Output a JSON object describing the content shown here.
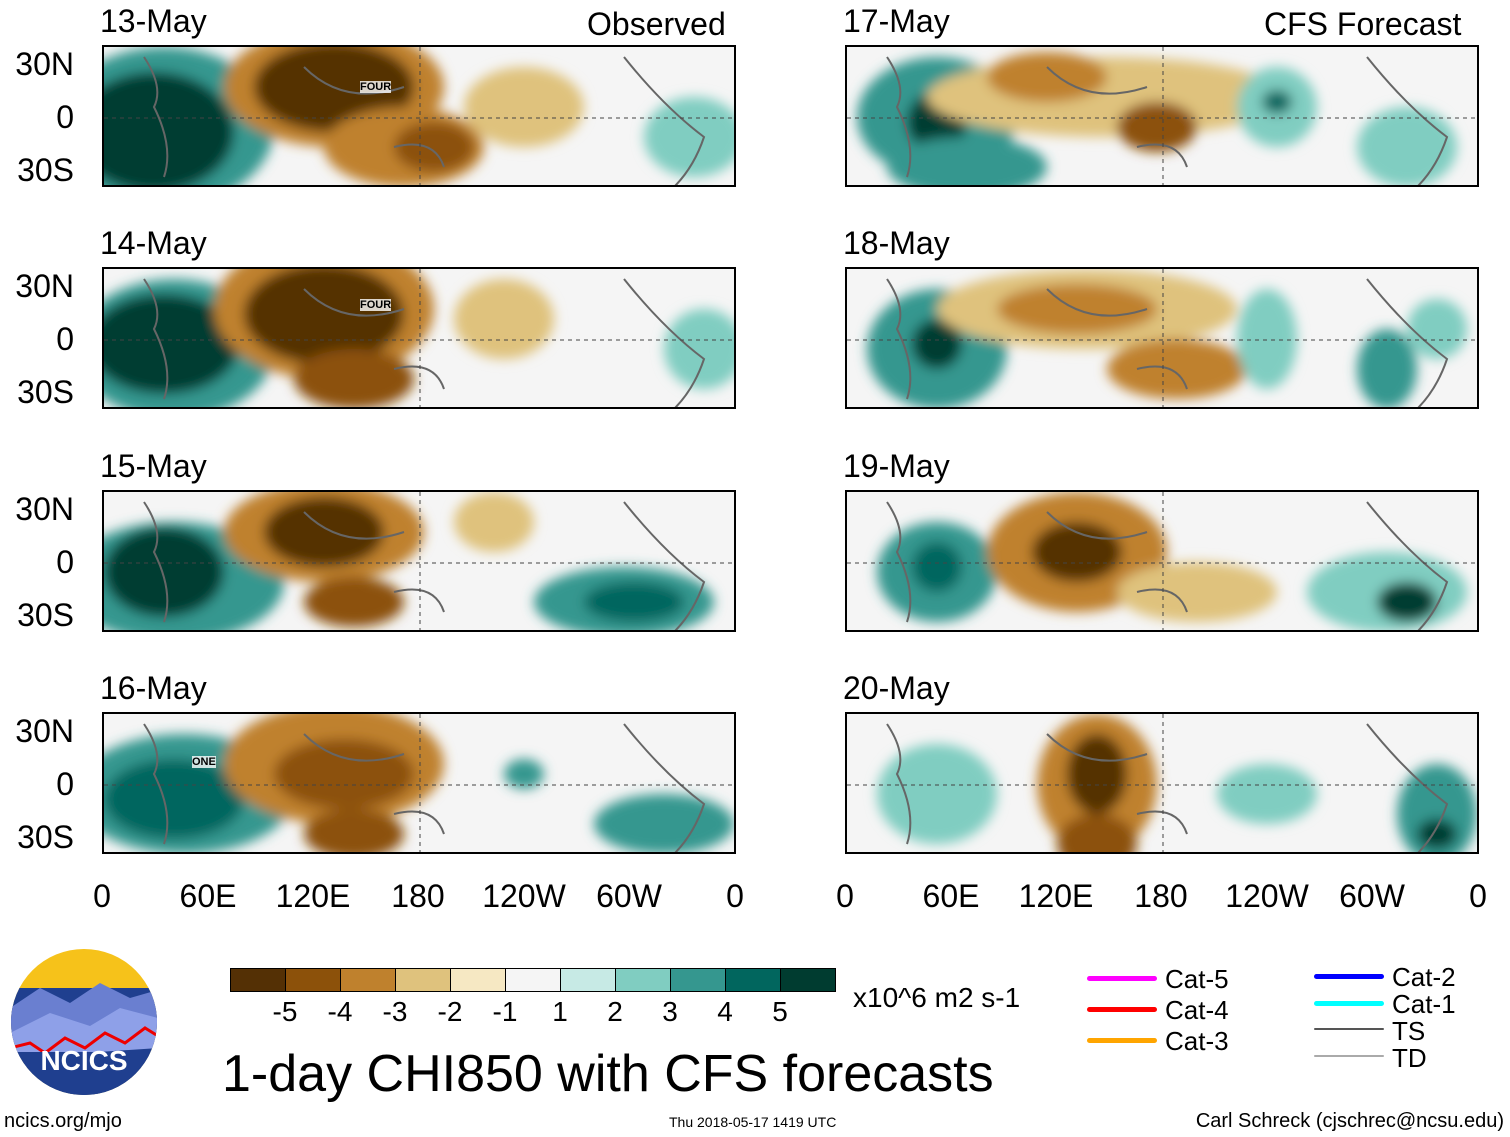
{
  "figure_title": "1-day CHI850 with CFS forecasts",
  "observed_label": "Observed",
  "forecast_label": "CFS Forecast",
  "panels": [
    {
      "date": "13-May",
      "type": "observed",
      "storm_label": "FOUR"
    },
    {
      "date": "14-May",
      "type": "observed",
      "storm_label": "FOUR"
    },
    {
      "date": "15-May",
      "type": "observed"
    },
    {
      "date": "16-May",
      "type": "observed",
      "storm_label": "ONE"
    },
    {
      "date": "17-May",
      "type": "forecast"
    },
    {
      "date": "18-May",
      "type": "forecast"
    },
    {
      "date": "19-May",
      "type": "forecast"
    },
    {
      "date": "20-May",
      "type": "forecast"
    }
  ],
  "lat_labels": [
    "30N",
    "0",
    "30S"
  ],
  "lon_labels": [
    "0",
    "60E",
    "120E",
    "180",
    "120W",
    "60W",
    "0"
  ],
  "colorbar": {
    "labels": [
      "-5",
      "-4",
      "-3",
      "-2",
      "-1",
      "1",
      "2",
      "3",
      "4",
      "5"
    ],
    "colors": [
      "#543005",
      "#8c510a",
      "#bf812d",
      "#dfc27d",
      "#f6e8c3",
      "#f5f5f5",
      "#c7eae5",
      "#80cdc1",
      "#35978f",
      "#01665e",
      "#003c30"
    ],
    "units": "x10^6 m2 s-1"
  },
  "storm_legend": [
    {
      "label": "Cat-5",
      "color": "#ff00ff"
    },
    {
      "label": "Cat-4",
      "color": "#ff0000"
    },
    {
      "label": "Cat-3",
      "color": "#ffa500"
    },
    {
      "label": "Cat-2",
      "color": "#0000ff"
    },
    {
      "label": "Cat-1",
      "color": "#00ffff"
    },
    {
      "label": "TS",
      "color": "#555555"
    },
    {
      "label": "TD",
      "color": "#aaaaaa"
    }
  ],
  "logo_text": "NCICS",
  "footer": {
    "left": "ncics.org/mjo",
    "center": "Thu 2018-05-17 1419 UTC",
    "right": "Carl Schreck (cjschrec@ncsu.edu)"
  }
}
